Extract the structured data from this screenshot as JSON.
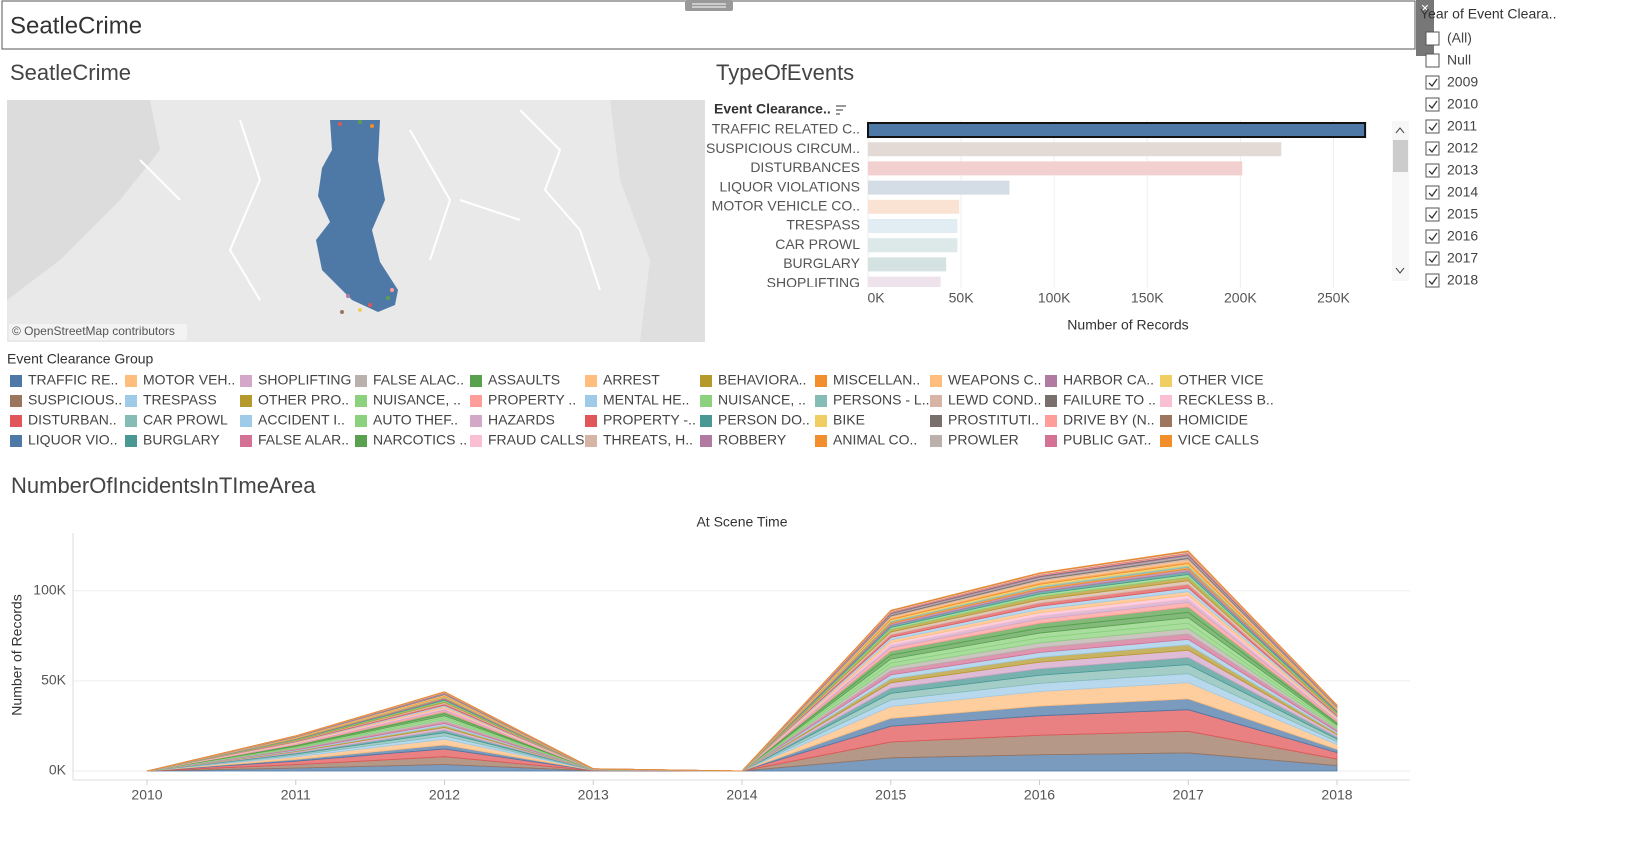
{
  "dashboard_title": "SeatleCrime",
  "map": {
    "title": "SeatleCrime",
    "attribution": "© OpenStreetMap contributors"
  },
  "filter": {
    "title": "Year of Event Cleara..",
    "options": [
      {
        "label": "(All)",
        "checked": false
      },
      {
        "label": "Null",
        "checked": false
      },
      {
        "label": "2009",
        "checked": true
      },
      {
        "label": "2010",
        "checked": true
      },
      {
        "label": "2011",
        "checked": true
      },
      {
        "label": "2012",
        "checked": true
      },
      {
        "label": "2013",
        "checked": true
      },
      {
        "label": "2014",
        "checked": true
      },
      {
        "label": "2015",
        "checked": true
      },
      {
        "label": "2016",
        "checked": true
      },
      {
        "label": "2017",
        "checked": true
      },
      {
        "label": "2018",
        "checked": true
      }
    ]
  },
  "chart_data": [
    {
      "type": "bar",
      "orientation": "horizontal",
      "title": "TypeOfEvents",
      "category_header": "Event Clearance..",
      "x_label": "Number of Records",
      "categories": [
        "TRAFFIC RELATED C..",
        "SUSPICIOUS CIRCUM..",
        "DISTURBANCES",
        "LIQUOR VIOLATIONS",
        "MOTOR VEHICLE CO..",
        "TRESPASS",
        "CAR PROWL",
        "BURGLARY",
        "SHOPLIFTING"
      ],
      "values": [
        267000,
        222000,
        201000,
        76000,
        49000,
        48000,
        48000,
        42000,
        39000
      ],
      "colors": [
        "#4e79a7",
        "#e3dad5",
        "#f3d0d0",
        "#d4dde6",
        "#fbe3d4",
        "#e2ecf3",
        "#dce9e8",
        "#d4e3e1",
        "#eee3ec"
      ],
      "selected_index": 0,
      "xlim": [
        0,
        275000
      ],
      "xticks": [
        {
          "value": 0,
          "label": "0K"
        },
        {
          "value": 50000,
          "label": "50K"
        },
        {
          "value": 100000,
          "label": "100K"
        },
        {
          "value": 150000,
          "label": "150K"
        },
        {
          "value": 200000,
          "label": "200K"
        },
        {
          "value": 250000,
          "label": "250K"
        }
      ],
      "grid": true
    },
    {
      "type": "area",
      "stacked": true,
      "title": "NumberOfIncidentsInTImeArea",
      "header": "At Scene Time",
      "y_label": "Number of Records",
      "legend_title": "Event Clearance Group",
      "categories": [
        "2010",
        "2011",
        "2012",
        "2013",
        "2014",
        "2015",
        "2016",
        "2017",
        "2018"
      ],
      "ylim": [
        -5000,
        132000
      ],
      "yticks": [
        {
          "value": 0,
          "label": "0K"
        },
        {
          "value": 50000,
          "label": "50K"
        },
        {
          "value": 100000,
          "label": "100K"
        }
      ],
      "grid": true,
      "series": [
        {
          "name": "TRAFFIC RE..",
          "color": "#4e79a7",
          "values": [
            0,
            1600,
            3600,
            100,
            0,
            7300,
            9000,
            10000,
            3000
          ]
        },
        {
          "name": "SUSPICIOUS..",
          "color": "#9c755f",
          "values": [
            0,
            1920,
            4320,
            120,
            0,
            8760,
            10800,
            12000,
            3600
          ]
        },
        {
          "name": "DISTURBAN..",
          "color": "#e15759",
          "values": [
            0,
            1920,
            4320,
            120,
            0,
            8760,
            10800,
            12000,
            3600
          ]
        },
        {
          "name": "LIQUOR VIO..",
          "color": "#4e79a7",
          "values": [
            0,
            960,
            2160,
            60,
            0,
            4380,
            5400,
            6000,
            1800
          ]
        },
        {
          "name": "MOTOR VEH..",
          "color": "#ffbe7d",
          "values": [
            0,
            1440,
            3240,
            90,
            0,
            6570,
            8100,
            9000,
            2700
          ]
        },
        {
          "name": "TRESPASS",
          "color": "#a0cbe8",
          "values": [
            0,
            800,
            1800,
            50,
            0,
            3650,
            4500,
            5000,
            1500
          ]
        },
        {
          "name": "CAR PROWL",
          "color": "#86bcb6",
          "values": [
            0,
            800,
            1800,
            50,
            0,
            3650,
            4500,
            5000,
            1500
          ]
        },
        {
          "name": "BURGLARY",
          "color": "#499894",
          "values": [
            0,
            640,
            1440,
            40,
            0,
            2920,
            3600,
            4000,
            1200
          ]
        },
        {
          "name": "SHOPLIFTING",
          "color": "#d4a6c8",
          "values": [
            0,
            640,
            1440,
            40,
            0,
            2920,
            3600,
            4000,
            1200
          ]
        },
        {
          "name": "OTHER PRO..",
          "color": "#b6992d",
          "values": [
            0,
            480,
            1080,
            30,
            0,
            2190,
            2700,
            3000,
            900
          ]
        },
        {
          "name": "ACCIDENT I..",
          "color": "#a0cbe8",
          "values": [
            0,
            480,
            1080,
            30,
            0,
            2190,
            2700,
            3000,
            900
          ]
        },
        {
          "name": "FALSE ALAR..",
          "color": "#d37295",
          "values": [
            0,
            480,
            1080,
            30,
            0,
            2190,
            2700,
            3000,
            900
          ]
        },
        {
          "name": "FALSE ALAC..",
          "color": "#bab0ac",
          "values": [
            0,
            480,
            1080,
            30,
            0,
            2190,
            2700,
            3000,
            900
          ]
        },
        {
          "name": "NUISANCE, ..",
          "color": "#8cd17d",
          "values": [
            0,
            480,
            1080,
            30,
            0,
            2190,
            2700,
            3000,
            900
          ]
        },
        {
          "name": "AUTO THEF..",
          "color": "#8cd17d",
          "values": [
            0,
            480,
            1080,
            30,
            0,
            2190,
            2700,
            3000,
            900
          ]
        },
        {
          "name": "NARCOTICS ..",
          "color": "#59a14f",
          "values": [
            0,
            480,
            1080,
            30,
            0,
            2190,
            2700,
            3000,
            900
          ]
        },
        {
          "name": "ASSAULTS",
          "color": "#59a14f",
          "values": [
            0,
            480,
            1080,
            30,
            0,
            2190,
            2700,
            3000,
            900
          ]
        },
        {
          "name": "PROPERTY ..",
          "color": "#ff9d9a",
          "values": [
            0,
            400,
            900,
            25,
            0,
            1825,
            2250,
            2500,
            750
          ]
        },
        {
          "name": "HAZARDS",
          "color": "#d4a6c8",
          "values": [
            0,
            320,
            720,
            20,
            0,
            1460,
            1800,
            2000,
            600
          ]
        },
        {
          "name": "FRAUD CALLS",
          "color": "#fabfd2",
          "values": [
            0,
            320,
            720,
            20,
            0,
            1460,
            1800,
            2000,
            600
          ]
        },
        {
          "name": "ARREST",
          "color": "#ffbe7d",
          "values": [
            0,
            320,
            720,
            20,
            0,
            1460,
            1800,
            2000,
            600
          ]
        },
        {
          "name": "MENTAL HE..",
          "color": "#a0cbe8",
          "values": [
            0,
            320,
            720,
            20,
            0,
            1460,
            1800,
            2000,
            600
          ]
        },
        {
          "name": "PROPERTY -..",
          "color": "#e15759",
          "values": [
            0,
            320,
            720,
            20,
            0,
            1460,
            1800,
            2000,
            600
          ]
        },
        {
          "name": "THREATS, H..",
          "color": "#d7b5a6",
          "values": [
            0,
            320,
            720,
            20,
            0,
            1460,
            1800,
            2000,
            600
          ]
        },
        {
          "name": "BEHAVIORA..",
          "color": "#b6992d",
          "values": [
            0,
            320,
            720,
            20,
            0,
            1460,
            1800,
            2000,
            600
          ]
        },
        {
          "name": "NUISANCE, ..",
          "color": "#8cd17d",
          "values": [
            0,
            240,
            540,
            15,
            0,
            1095,
            1350,
            1500,
            450
          ]
        },
        {
          "name": "PERSON DO..",
          "color": "#499894",
          "values": [
            0,
            240,
            540,
            15,
            0,
            1095,
            1350,
            1500,
            450
          ]
        },
        {
          "name": "ROBBERY",
          "color": "#b07aa1",
          "values": [
            0,
            240,
            540,
            15,
            0,
            1095,
            1350,
            1500,
            450
          ]
        },
        {
          "name": "MISCELLAN..",
          "color": "#f28e2b",
          "values": [
            0,
            160,
            360,
            10,
            0,
            730,
            900,
            1000,
            300
          ]
        },
        {
          "name": "PERSONS - L..",
          "color": "#86bcb6",
          "values": [
            0,
            160,
            360,
            10,
            0,
            730,
            900,
            1000,
            300
          ]
        },
        {
          "name": "BIKE",
          "color": "#f1ce63",
          "values": [
            0,
            160,
            360,
            10,
            0,
            730,
            900,
            1000,
            300
          ]
        },
        {
          "name": "ANIMAL CO..",
          "color": "#f28e2b",
          "values": [
            0,
            160,
            360,
            10,
            0,
            730,
            900,
            1000,
            300
          ]
        },
        {
          "name": "WEAPONS C..",
          "color": "#ffbe7d",
          "values": [
            0,
            160,
            360,
            10,
            0,
            730,
            900,
            1000,
            300
          ]
        },
        {
          "name": "LEWD COND..",
          "color": "#d7b5a6",
          "values": [
            0,
            128,
            288,
            8,
            0,
            584,
            720,
            800,
            240
          ]
        },
        {
          "name": "PROSTITUTI..",
          "color": "#79706e",
          "values": [
            0,
            128,
            288,
            8,
            0,
            584,
            720,
            800,
            240
          ]
        },
        {
          "name": "PROWLER",
          "color": "#bab0ac",
          "values": [
            0,
            112,
            252,
            7,
            0,
            511,
            630,
            700,
            210
          ]
        },
        {
          "name": "HARBOR CA..",
          "color": "#b07aa1",
          "values": [
            0,
            80,
            180,
            5,
            0,
            365,
            450,
            500,
            150
          ]
        },
        {
          "name": "FAILURE TO ..",
          "color": "#79706e",
          "values": [
            0,
            80,
            180,
            5,
            0,
            365,
            450,
            500,
            150
          ]
        },
        {
          "name": "DRIVE BY (N..",
          "color": "#ff9d9a",
          "values": [
            0,
            64,
            144,
            4,
            0,
            292,
            360,
            400,
            120
          ]
        },
        {
          "name": "PUBLIC GAT..",
          "color": "#d37295",
          "values": [
            0,
            64,
            144,
            4,
            0,
            292,
            360,
            400,
            120
          ]
        },
        {
          "name": "OTHER VICE",
          "color": "#f1ce63",
          "values": [
            0,
            48,
            108,
            3,
            0,
            219,
            270,
            300,
            90
          ]
        },
        {
          "name": "RECKLESS B..",
          "color": "#fabfd2",
          "values": [
            0,
            48,
            108,
            3,
            0,
            219,
            270,
            300,
            90
          ]
        },
        {
          "name": "HOMICIDE",
          "color": "#9d7660",
          "values": [
            0,
            32,
            72,
            2,
            0,
            146,
            180,
            200,
            60
          ]
        },
        {
          "name": "VICE CALLS",
          "color": "#f28e2b",
          "values": [
            0,
            32,
            72,
            2,
            0,
            146,
            180,
            200,
            60
          ]
        }
      ]
    }
  ]
}
